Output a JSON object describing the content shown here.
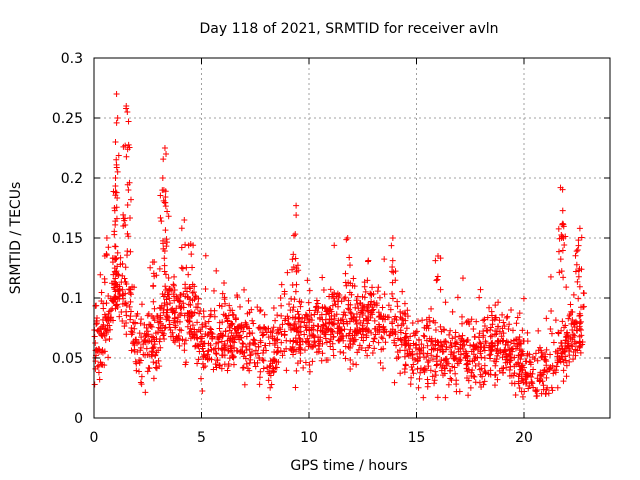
{
  "chart_data": {
    "type": "scatter",
    "title": "Day 118 of 2021, SRMTID for receiver avln",
    "xlabel": "GPS time / hours",
    "ylabel": "SRMTID / TECUs",
    "xlim": [
      0,
      24
    ],
    "ylim": [
      0,
      0.3
    ],
    "x_ticks": [
      0,
      5,
      10,
      15,
      20
    ],
    "x_tick_labels": [
      "0",
      "5",
      "10",
      "15",
      "20"
    ],
    "y_ticks": [
      0,
      0.05,
      0.1,
      0.15,
      0.2,
      0.25,
      0.3
    ],
    "y_tick_labels": [
      "0",
      "0.05",
      "0.1",
      "0.15",
      "0.2",
      "0.25",
      "0.3"
    ],
    "grid": true,
    "marker": "+",
    "color": "#ff0000",
    "series": [
      {
        "name": "SRMTID",
        "profile": [
          {
            "x": 0.0,
            "y": 0.058
          },
          {
            "x": 0.5,
            "y": 0.07
          },
          {
            "x": 1.0,
            "y": 0.11
          },
          {
            "x": 1.5,
            "y": 0.1
          },
          {
            "x": 2.0,
            "y": 0.06
          },
          {
            "x": 2.5,
            "y": 0.06
          },
          {
            "x": 3.0,
            "y": 0.07
          },
          {
            "x": 3.5,
            "y": 0.1
          },
          {
            "x": 4.0,
            "y": 0.08
          },
          {
            "x": 4.5,
            "y": 0.09
          },
          {
            "x": 5.0,
            "y": 0.06
          },
          {
            "x": 6.0,
            "y": 0.07
          },
          {
            "x": 7.0,
            "y": 0.065
          },
          {
            "x": 8.0,
            "y": 0.055
          },
          {
            "x": 9.0,
            "y": 0.075
          },
          {
            "x": 10.0,
            "y": 0.07
          },
          {
            "x": 11.0,
            "y": 0.08
          },
          {
            "x": 12.0,
            "y": 0.075
          },
          {
            "x": 13.0,
            "y": 0.085
          },
          {
            "x": 14.0,
            "y": 0.075
          },
          {
            "x": 15.0,
            "y": 0.055
          },
          {
            "x": 16.0,
            "y": 0.05
          },
          {
            "x": 17.0,
            "y": 0.055
          },
          {
            "x": 18.0,
            "y": 0.055
          },
          {
            "x": 19.0,
            "y": 0.058
          },
          {
            "x": 20.0,
            "y": 0.045
          },
          {
            "x": 21.0,
            "y": 0.04
          },
          {
            "x": 22.0,
            "y": 0.06
          },
          {
            "x": 22.8,
            "y": 0.08
          }
        ],
        "peaks": [
          {
            "x": 1.05,
            "y": 0.27
          },
          {
            "x": 1.1,
            "y": 0.25
          },
          {
            "x": 1.0,
            "y": 0.23
          },
          {
            "x": 1.5,
            "y": 0.26
          },
          {
            "x": 1.55,
            "y": 0.255
          },
          {
            "x": 1.45,
            "y": 0.227
          },
          {
            "x": 1.6,
            "y": 0.19
          },
          {
            "x": 1.0,
            "y": 0.2
          },
          {
            "x": 0.95,
            "y": 0.175
          },
          {
            "x": 3.3,
            "y": 0.225
          },
          {
            "x": 3.35,
            "y": 0.22
          },
          {
            "x": 3.2,
            "y": 0.2
          },
          {
            "x": 3.25,
            "y": 0.19
          },
          {
            "x": 4.2,
            "y": 0.165
          },
          {
            "x": 4.5,
            "y": 0.145
          },
          {
            "x": 9.4,
            "y": 0.177
          },
          {
            "x": 9.3,
            "y": 0.152
          },
          {
            "x": 13.9,
            "y": 0.15
          },
          {
            "x": 16.0,
            "y": 0.135
          },
          {
            "x": 21.7,
            "y": 0.192
          },
          {
            "x": 21.8,
            "y": 0.162
          },
          {
            "x": 21.75,
            "y": 0.15
          },
          {
            "x": 22.6,
            "y": 0.158
          },
          {
            "x": 22.5,
            "y": 0.14
          },
          {
            "x": 0.6,
            "y": 0.15
          },
          {
            "x": 2.8,
            "y": 0.13
          },
          {
            "x": 11.8,
            "y": 0.15
          }
        ],
        "n_points": 2000
      }
    ]
  }
}
